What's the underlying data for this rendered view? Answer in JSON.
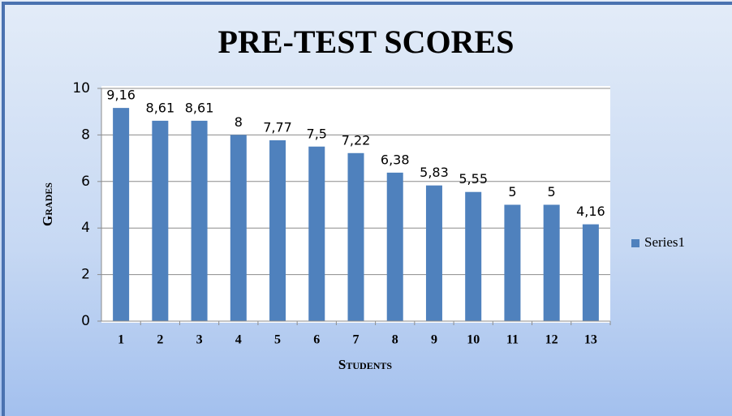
{
  "chart_data": {
    "type": "bar",
    "title": "PRE-TEST SCORES",
    "x_label": "Students",
    "y_label": "Grades",
    "categories": [
      "1",
      "2",
      "3",
      "4",
      "5",
      "6",
      "7",
      "8",
      "9",
      "10",
      "11",
      "12",
      "13"
    ],
    "series": [
      {
        "name": "Series1",
        "color": "#4f81bd",
        "values": [
          9.16,
          8.61,
          8.61,
          8,
          7.77,
          7.5,
          7.22,
          6.38,
          5.83,
          5.55,
          5,
          5,
          4.16
        ],
        "value_labels": [
          "9,16",
          "8,61",
          "8,61",
          "8",
          "7,77",
          "7,5",
          "7,22",
          "6,38",
          "5,83",
          "5,55",
          "5",
          "5",
          "4,16"
        ]
      }
    ],
    "ylim": [
      0,
      10
    ],
    "yticks": [
      0,
      2,
      4,
      6,
      8,
      10
    ],
    "grid": true,
    "legend": "right"
  }
}
